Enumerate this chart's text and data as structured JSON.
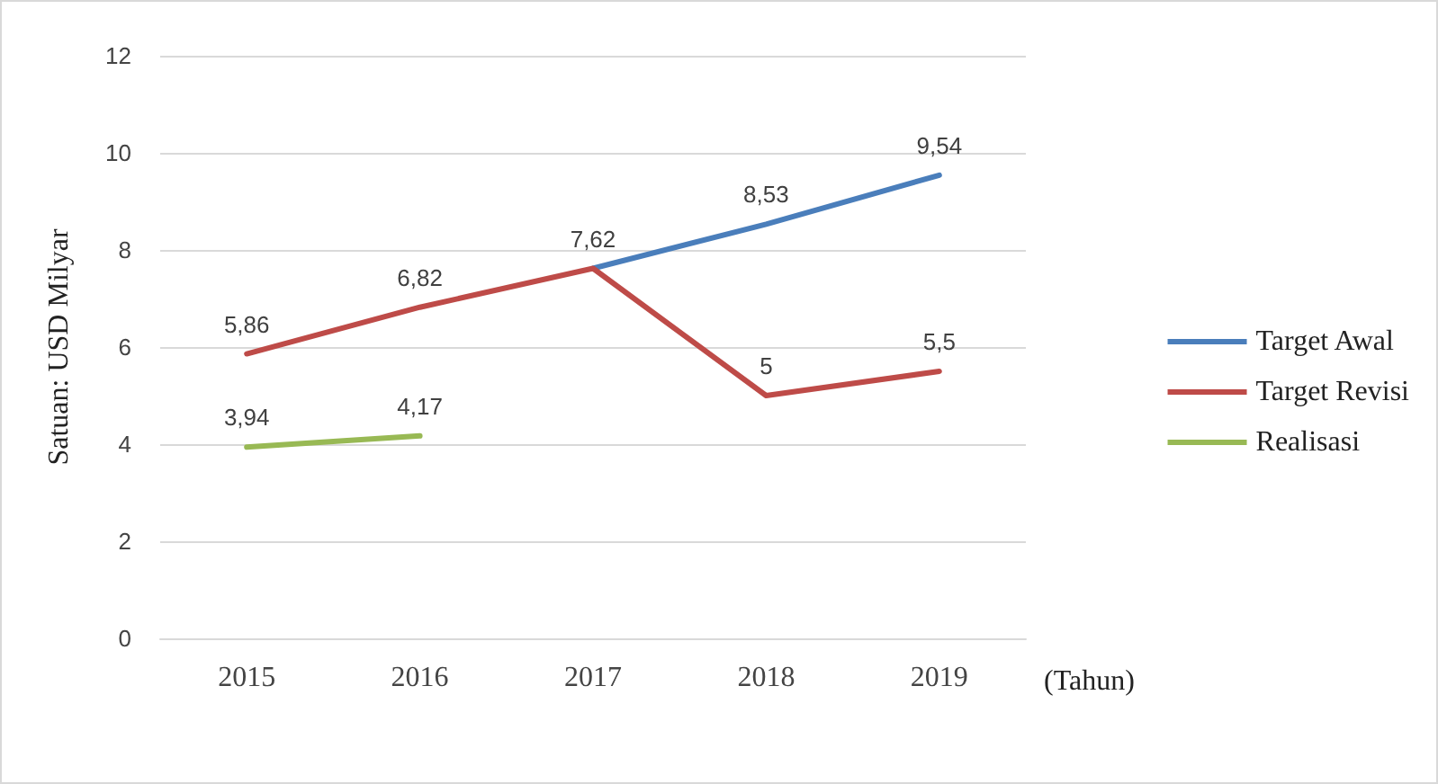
{
  "chart_data": {
    "type": "line",
    "xlabel": "(Tahun)",
    "ylabel": "Satuan: USD Milyar",
    "categories": [
      "2015",
      "2016",
      "2017",
      "2018",
      "2019"
    ],
    "series": [
      {
        "name": "Target Awal",
        "color": "#4a7ebb",
        "values": [
          null,
          null,
          7.62,
          8.53,
          9.54
        ],
        "value_labels": [
          null,
          null,
          null,
          "8,53",
          "9,54"
        ]
      },
      {
        "name": "Target Revisi",
        "color": "#be4b48",
        "values": [
          5.86,
          6.82,
          7.62,
          5,
          5.5
        ],
        "value_labels": [
          "5,86",
          "6,82",
          "7,62",
          "5",
          "5,5"
        ]
      },
      {
        "name": "Realisasi",
        "color": "#98b954",
        "values": [
          3.94,
          4.17,
          null,
          null,
          null
        ],
        "value_labels": [
          "3,94",
          "4,17",
          null,
          null,
          null
        ]
      }
    ],
    "ylim": [
      0,
      12
    ],
    "yticks": [
      0,
      2,
      4,
      6,
      8,
      10,
      12
    ],
    "grid": "y",
    "legend": "right",
    "marker": "none",
    "line_style": "solid"
  }
}
